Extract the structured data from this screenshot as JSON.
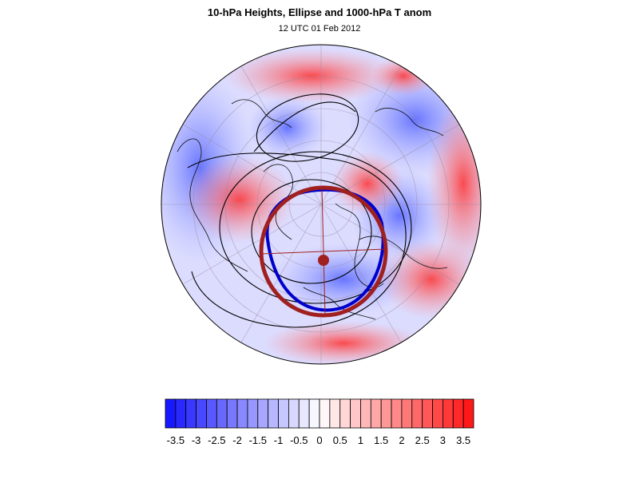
{
  "title": "10-hPa Heights, Ellipse and 1000-hPa T anom",
  "subtitle": "12 UTC 01 Feb 2012",
  "colorbar": {
    "labels": [
      "-3.5",
      "-3",
      "-2.5",
      "-2",
      "-1.5",
      "-1",
      "-0.5",
      "0",
      "0.5",
      "1",
      "1.5",
      "2",
      "2.5",
      "3",
      "3.5"
    ],
    "min": -3.75,
    "max": 3.75,
    "step": 0.25,
    "low_color": "#1010ff",
    "mid_color": "#ffffff",
    "high_color": "#ff1010"
  },
  "map": {
    "projection": "polar stereographic (northern hemisphere)",
    "ellipse_color": "#a02020",
    "vortex_edge_color": "#0000cc",
    "contour_color": "#000000",
    "coast_color": "#000000"
  }
}
